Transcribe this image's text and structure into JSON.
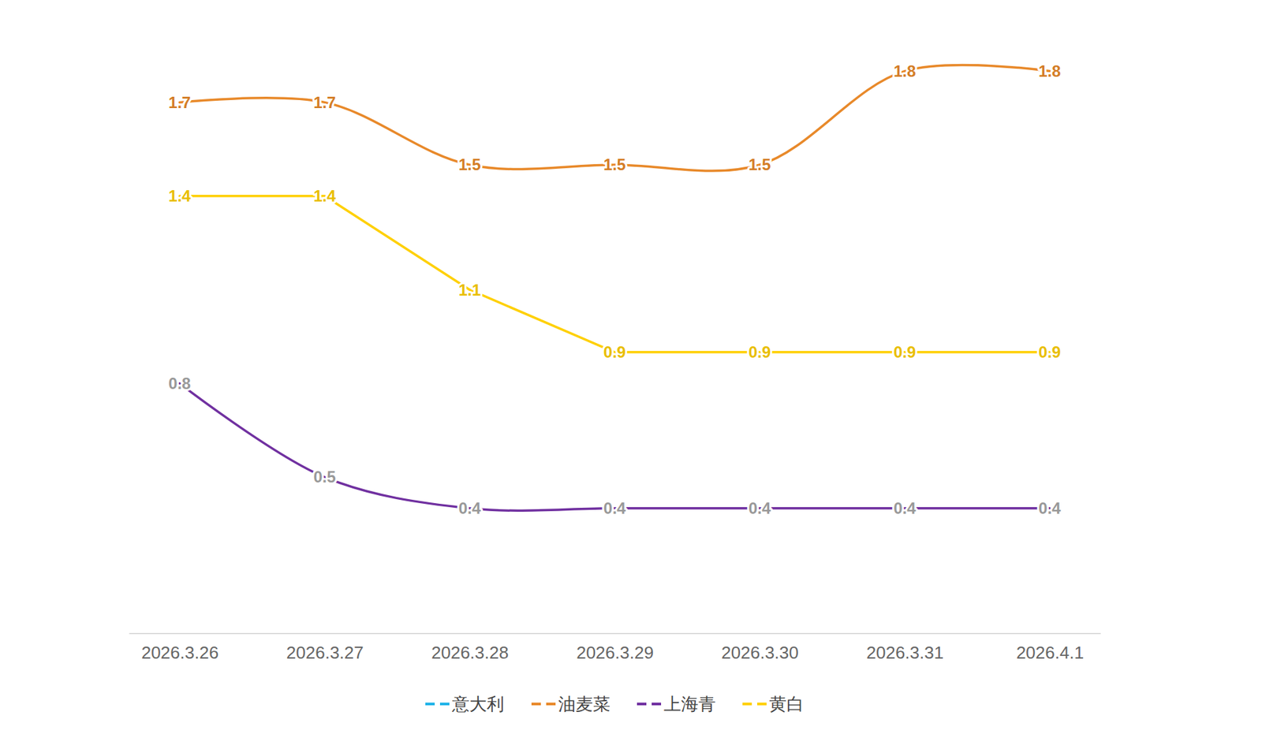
{
  "chart_data": {
    "type": "line",
    "categories": [
      "2026.3.26",
      "2026.3.27",
      "2026.3.28",
      "2026.3.29",
      "2026.3.30",
      "2026.3.31",
      "2026.4.1"
    ],
    "series": [
      {
        "name": "意大利",
        "color": "#1fb3e8",
        "values": [
          null,
          null,
          null,
          null,
          null,
          null,
          null
        ],
        "line_style": "smooth"
      },
      {
        "name": "油麦菜",
        "color": "#e8892a",
        "values": [
          1.7,
          1.7,
          1.5,
          1.5,
          1.5,
          1.8,
          1.8
        ],
        "line_style": "smooth"
      },
      {
        "name": "上海青",
        "color": "#7030a0",
        "values": [
          0.8,
          0.5,
          0.4,
          0.4,
          0.4,
          0.4,
          0.4
        ],
        "line_style": "smooth"
      },
      {
        "name": "黄白",
        "color": "#ffd000",
        "values": [
          1.4,
          1.4,
          1.1,
          0.9,
          0.9,
          0.9,
          0.9
        ],
        "line_style": "straight"
      }
    ],
    "ylim": [
      0,
      2
    ],
    "data_labels": true,
    "tick_labels": "x",
    "legend": "bottom",
    "grid": false
  }
}
